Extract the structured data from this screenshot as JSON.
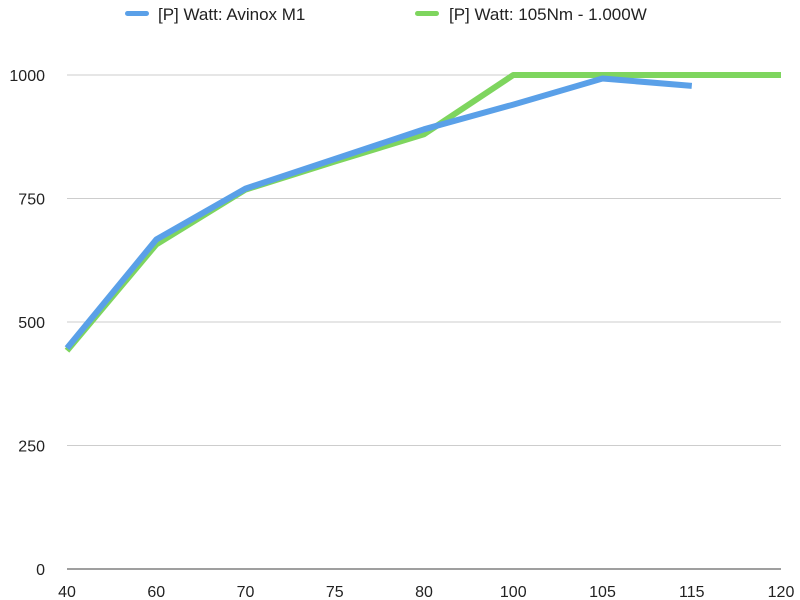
{
  "chart_data": {
    "type": "line",
    "categories": [
      "40",
      "60",
      "70",
      "75",
      "80",
      "100",
      "105",
      "115",
      "120"
    ],
    "series": [
      {
        "name": "[P] Watt: Avinox M1",
        "color": "#5aa0e8",
        "values": [
          447,
          667,
          770,
          830,
          890,
          940,
          993,
          978,
          null
        ]
      },
      {
        "name": "[P] Watt: 105Nm - 1.000W",
        "color": "#7ed55e",
        "values": [
          442,
          657,
          768,
          825,
          880,
          1000,
          1000,
          1000,
          1000
        ]
      }
    ],
    "yticks": [
      "0",
      "250",
      "500",
      "750",
      "1000"
    ],
    "ylim": [
      0,
      1000
    ],
    "grid": "horizontal",
    "legend": "top"
  }
}
